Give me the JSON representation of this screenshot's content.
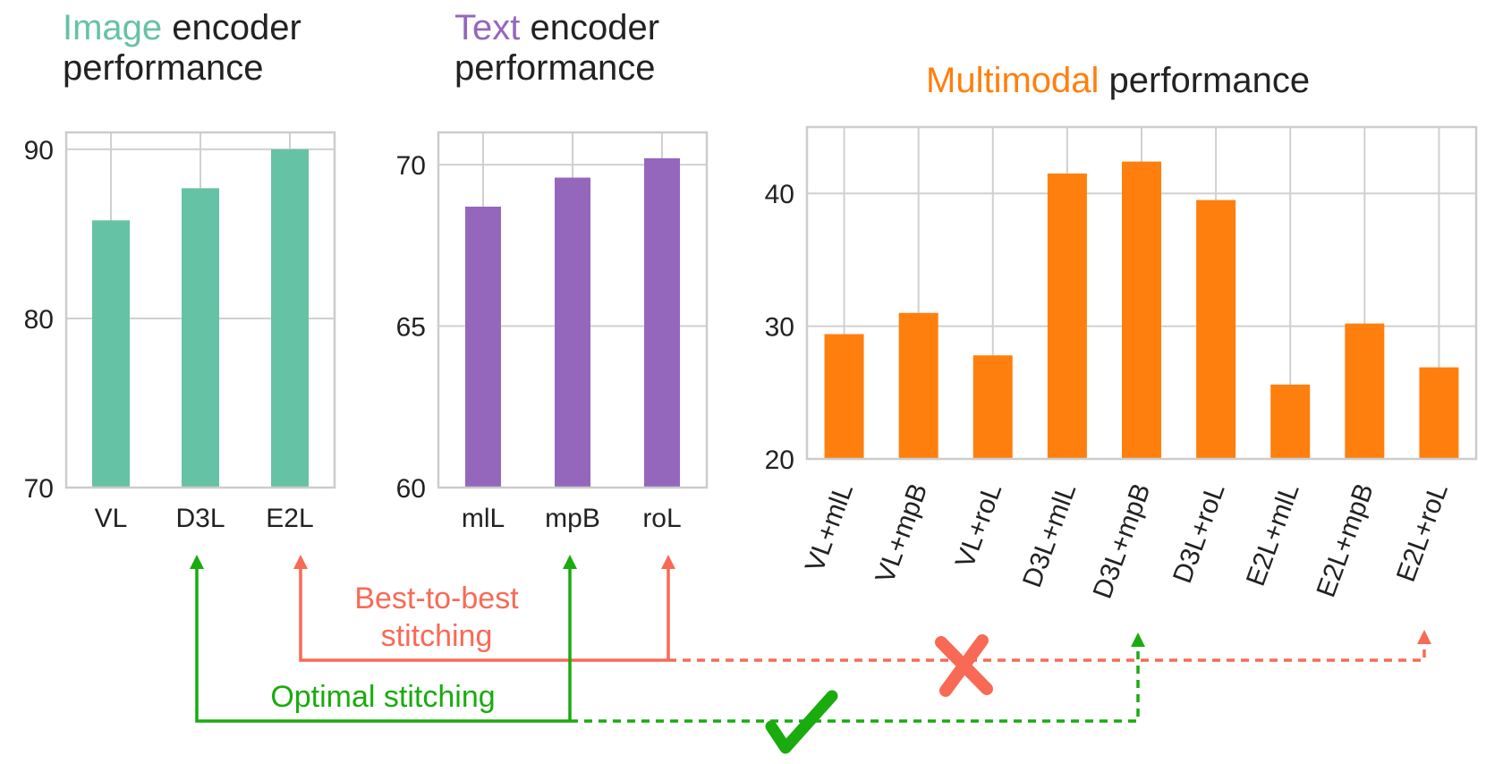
{
  "titles": {
    "image": {
      "highlight": "Image",
      "rest": " encoder",
      "line2": "performance"
    },
    "text": {
      "highlight": "Text",
      "rest": " encoder",
      "line2": "performance"
    },
    "multi": {
      "highlight": "Multimodal",
      "rest": " performance"
    }
  },
  "colors": {
    "image": "#66c2a5",
    "text": "#9467bd",
    "multi": "#ff7f0e",
    "best": "#f86a55",
    "optimal": "#1aab0f",
    "grid": "#d0d0d0",
    "spine": "#cccccc"
  },
  "annotations": {
    "best_line1": "Best-to-best",
    "best_line2": "stitching",
    "optimal": "Optimal stitching",
    "cross_icon": "cross-icon",
    "check_icon": "checkmark-icon"
  },
  "chart_data": [
    {
      "type": "bar",
      "title": "Image encoder performance",
      "categories": [
        "VL",
        "D3L",
        "E2L"
      ],
      "values": [
        85.8,
        87.7,
        90.0
      ],
      "ylim": [
        70,
        91
      ],
      "yticks": [
        70,
        80,
        90
      ],
      "grid": true
    },
    {
      "type": "bar",
      "title": "Text encoder performance",
      "categories": [
        "mlL",
        "mpB",
        "roL"
      ],
      "values": [
        68.7,
        69.6,
        70.2
      ],
      "ylim": [
        60,
        71
      ],
      "yticks": [
        60,
        65,
        70
      ],
      "grid": true
    },
    {
      "type": "bar",
      "title": "Multimodal performance",
      "categories": [
        "VL+mlL",
        "VL+mpB",
        "VL+roL",
        "D3L+mlL",
        "D3L+mpB",
        "D3L+roL",
        "E2L+mlL",
        "E2L+mpB",
        "E2L+roL"
      ],
      "values": [
        29.4,
        31.0,
        27.8,
        41.5,
        42.4,
        39.5,
        25.6,
        30.2,
        26.9
      ],
      "ylim": [
        20,
        45
      ],
      "yticks": [
        20,
        30,
        40
      ],
      "grid": true
    }
  ]
}
